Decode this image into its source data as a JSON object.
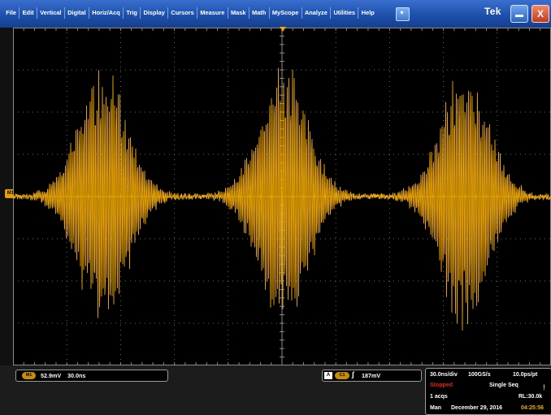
{
  "menu": {
    "items": [
      {
        "label": "File"
      },
      {
        "label": "Edit"
      },
      {
        "label": "Vertical"
      },
      {
        "label": "Digital"
      },
      {
        "label": "Horiz/Acq"
      },
      {
        "label": "Trig"
      },
      {
        "label": "Display"
      },
      {
        "label": "Cursors"
      },
      {
        "label": "Measure"
      },
      {
        "label": "Mask"
      },
      {
        "label": "Math"
      },
      {
        "label": "MyScope"
      },
      {
        "label": "Analyze"
      },
      {
        "label": "Utilities"
      },
      {
        "label": "Help"
      }
    ],
    "dropdown_glyph": "▼",
    "brand": "Tek",
    "close_glyph": "X"
  },
  "display": {
    "channel_marker": "M1",
    "trace_color": "#f0a800",
    "grid_color": "#6a6a6a"
  },
  "math_readout": {
    "badge": "M1",
    "scale": "52.9mV",
    "position": "30.0ns"
  },
  "trigger_readout": {
    "source_letter": "A",
    "channel": "C1",
    "slope_glyph": "∫",
    "level": "187mV"
  },
  "acquisition": {
    "horiz_scale": "30.0ns/div",
    "sample_rate": "100GS/s",
    "resolution": "10.0ps/pt",
    "status": "Stopped",
    "mode": "Single Seq",
    "acqs": "1 acqs",
    "record_length": "RL:30.0k",
    "day": "Man",
    "date": "December 29, 2016",
    "time": "04:25:56",
    "indicator_glyph": "!"
  }
}
